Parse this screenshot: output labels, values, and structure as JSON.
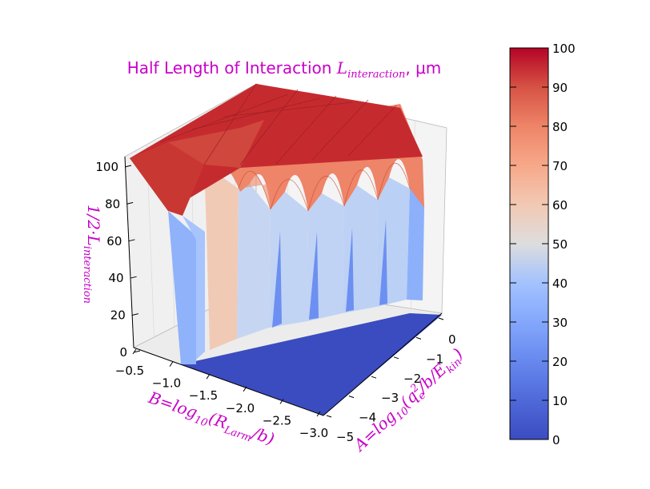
{
  "chart_data": {
    "type": "surface3d",
    "title": {
      "text": "Half Length of Interaction ",
      "math": "L",
      "math_sub": "interaction",
      "unit": ", μm"
    },
    "zlabel": {
      "text": "1/2·L",
      "sub": "interaction"
    },
    "xlabel": {
      "text": "B=log",
      "sub1": "10",
      "mid": "(R",
      "sub2": "Larm",
      "tail": "/b)"
    },
    "ylabel": {
      "text": "A=log",
      "sub1": "10",
      "mid": "(q",
      "sup": "2",
      "sub2": "e",
      "mid2": "/b/E",
      "sub3": "kin",
      "tail": ")"
    },
    "x_axis": {
      "range": [
        -3.0,
        -0.5
      ],
      "ticks": [
        "−0.5",
        "−1.0",
        "−1.5",
        "−2.0",
        "−2.5",
        "−3.0"
      ]
    },
    "y_axis": {
      "range": [
        -5,
        0
      ],
      "ticks": [
        "0",
        "−1",
        "−2",
        "−3",
        "−4",
        "−5"
      ]
    },
    "z_axis": {
      "range": [
        0,
        100
      ],
      "ticks": [
        "0",
        "20",
        "40",
        "60",
        "80",
        "100"
      ]
    },
    "colormap": "coolwarm",
    "colorbar": {
      "range": [
        0,
        100
      ],
      "ticks": [
        "0",
        "10",
        "20",
        "30",
        "40",
        "50",
        "60",
        "70",
        "80",
        "90",
        "100"
      ]
    },
    "colors": {
      "label": "#c800c8",
      "low": "#3b4cc0",
      "mid": "#dddddd",
      "high": "#b40426"
    },
    "grid": true,
    "surface_profile": {
      "description_values": [
        {
          "B": -0.5,
          "A_range": [
            -5,
            0
          ],
          "value": 100
        }
      ],
      "plateau_value": 100,
      "floor_value": 0,
      "strip_values": [
        40,
        40,
        40,
        40,
        40,
        60,
        30
      ]
    }
  }
}
